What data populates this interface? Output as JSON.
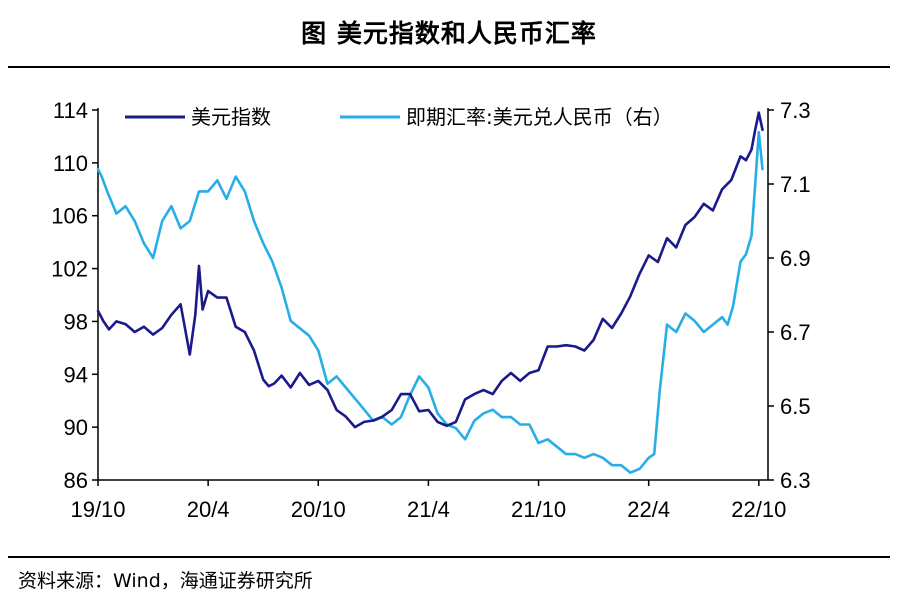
{
  "header": {
    "title": "图  美元指数和人民币汇率"
  },
  "footer": {
    "source": "资料来源：Wind，海通证券研究所"
  },
  "colors": {
    "series_1": "#1a1a8c",
    "series_2": "#27aee6",
    "axis": "#000000"
  },
  "chart_data": {
    "type": "line",
    "title": "美元指数和人民币汇率",
    "x_tick_labels": [
      "19/10",
      "20/4",
      "20/10",
      "21/4",
      "21/10",
      "22/4",
      "22/10"
    ],
    "x_tick_months": [
      0,
      6,
      12,
      18,
      24,
      30,
      36
    ],
    "x_range_months": [
      0,
      36.5
    ],
    "y_left": {
      "ticks": [
        "114",
        "110",
        "106",
        "102",
        "98",
        "94",
        "90",
        "86"
      ],
      "range": [
        86,
        114
      ]
    },
    "y_right": {
      "ticks": [
        "7.3",
        "7.1",
        "6.9",
        "6.7",
        "6.5",
        "6.3"
      ],
      "range": [
        6.3,
        7.3
      ]
    },
    "legend_position": "top",
    "series": [
      {
        "name": "美元指数",
        "axis": "left",
        "x": [
          0,
          0.3,
          0.6,
          1,
          1.5,
          2,
          2.5,
          3,
          3.5,
          4,
          4.5,
          5,
          5.3,
          5.5,
          5.7,
          6,
          6.5,
          7,
          7.5,
          8,
          8.5,
          9,
          9.3,
          9.6,
          10,
          10.5,
          11,
          11.5,
          12,
          12.5,
          13,
          13.5,
          14,
          14.5,
          15,
          15.5,
          16,
          16.5,
          17,
          17.5,
          18,
          18.5,
          19,
          19.5,
          20,
          20.5,
          21,
          21.5,
          22,
          22.5,
          23,
          23.5,
          24,
          24.5,
          25,
          25.5,
          26,
          26.5,
          27,
          27.5,
          28,
          28.5,
          29,
          29.5,
          30,
          30.5,
          31,
          31.5,
          32,
          32.5,
          33,
          33.5,
          34,
          34.5,
          35,
          35.3,
          35.6,
          35.8,
          36,
          36.2
        ],
        "values": [
          98.8,
          98.0,
          97.4,
          98.0,
          97.8,
          97.2,
          97.6,
          97.0,
          97.5,
          98.5,
          99.3,
          95.5,
          98.5,
          102.2,
          98.9,
          100.3,
          99.8,
          99.8,
          97.6,
          97.2,
          95.8,
          93.6,
          93.1,
          93.3,
          93.9,
          93.0,
          94.1,
          93.2,
          93.5,
          92.8,
          91.3,
          90.8,
          90.0,
          90.4,
          90.5,
          90.8,
          91.3,
          92.5,
          92.5,
          91.2,
          91.3,
          90.4,
          90.1,
          90.4,
          92.1,
          92.5,
          92.8,
          92.5,
          93.5,
          94.1,
          93.5,
          94.1,
          94.3,
          96.1,
          96.1,
          96.2,
          96.1,
          95.8,
          96.6,
          98.2,
          97.5,
          98.6,
          99.9,
          101.6,
          103.0,
          102.5,
          104.3,
          103.6,
          105.3,
          105.9,
          106.9,
          106.4,
          108.0,
          108.7,
          110.5,
          110.2,
          111.0,
          112.5,
          113.8,
          112.5
        ]
      },
      {
        "name": "即期汇率:美元兑人民币（右）",
        "axis": "right",
        "x": [
          0,
          0.2,
          0.5,
          1,
          1.5,
          2,
          2.5,
          3,
          3.5,
          4,
          4.5,
          5,
          5.5,
          6,
          6.5,
          7,
          7.5,
          8,
          8.5,
          9,
          9.5,
          10,
          10.5,
          11,
          11.5,
          12,
          12.5,
          13,
          13.5,
          14,
          14.5,
          15,
          15.5,
          16,
          16.5,
          17,
          17.5,
          18,
          18.5,
          19,
          19.5,
          20,
          20.5,
          21,
          21.5,
          22,
          22.5,
          23,
          23.5,
          24,
          24.5,
          25,
          25.5,
          26,
          26.5,
          27,
          27.5,
          28,
          28.5,
          29,
          29.5,
          30,
          30.3,
          30.6,
          31,
          31.5,
          32,
          32.5,
          33,
          33.5,
          34,
          34.3,
          34.6,
          35,
          35.3,
          35.6,
          35.8,
          36,
          36.2
        ],
        "values": [
          7.14,
          7.12,
          7.08,
          7.02,
          7.04,
          7.0,
          6.94,
          6.9,
          7.0,
          7.04,
          6.98,
          7.0,
          7.08,
          7.08,
          7.11,
          7.06,
          7.12,
          7.08,
          7.0,
          6.94,
          6.89,
          6.82,
          6.73,
          6.71,
          6.69,
          6.65,
          6.56,
          6.58,
          6.55,
          6.52,
          6.49,
          6.46,
          6.47,
          6.45,
          6.47,
          6.53,
          6.58,
          6.55,
          6.48,
          6.45,
          6.44,
          6.41,
          6.46,
          6.48,
          6.49,
          6.47,
          6.47,
          6.45,
          6.45,
          6.4,
          6.41,
          6.39,
          6.37,
          6.37,
          6.36,
          6.37,
          6.36,
          6.34,
          6.34,
          6.32,
          6.33,
          6.36,
          6.37,
          6.54,
          6.72,
          6.7,
          6.75,
          6.73,
          6.7,
          6.72,
          6.74,
          6.72,
          6.77,
          6.89,
          6.91,
          6.96,
          7.1,
          7.24,
          7.14
        ]
      }
    ]
  }
}
